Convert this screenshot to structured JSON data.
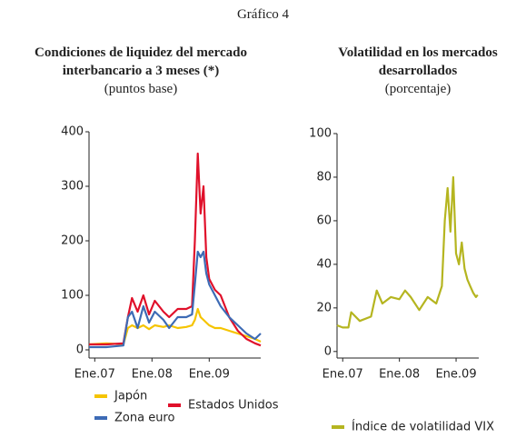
{
  "title": "Gráfico 4",
  "chart_data": [
    {
      "type": "line",
      "title": "Condiciones de liquidez del mercado interbancario a 3 meses (*)",
      "subtitle": "(puntos base)",
      "x": [
        2006.9,
        2007.2,
        2007.5,
        2007.58,
        2007.65,
        2007.75,
        2007.85,
        2007.95,
        2008.05,
        2008.2,
        2008.3,
        2008.45,
        2008.6,
        2008.7,
        2008.75,
        2008.8,
        2008.85,
        2008.9,
        2008.95,
        2009.0,
        2009.1,
        2009.2,
        2009.35,
        2009.5,
        2009.65,
        2009.8,
        2009.9
      ],
      "series": [
        {
          "name": "Japón",
          "color": "#f5c400",
          "values": [
            10,
            12,
            10,
            40,
            45,
            40,
            45,
            38,
            45,
            42,
            45,
            40,
            42,
            45,
            55,
            75,
            60,
            55,
            50,
            45,
            40,
            40,
            35,
            30,
            25,
            20,
            15
          ]
        },
        {
          "name": "Estados Unidos",
          "color": "#e0102a",
          "values": [
            10,
            10,
            12,
            60,
            95,
            70,
            100,
            65,
            90,
            70,
            60,
            75,
            75,
            80,
            200,
            360,
            250,
            300,
            170,
            130,
            110,
            100,
            60,
            35,
            20,
            12,
            8
          ]
        },
        {
          "name": "Zona euro",
          "color": "#3d6bb5",
          "values": [
            5,
            5,
            8,
            60,
            70,
            40,
            80,
            50,
            70,
            55,
            40,
            60,
            60,
            65,
            120,
            180,
            170,
            180,
            140,
            120,
            100,
            80,
            60,
            45,
            30,
            20,
            30
          ]
        }
      ],
      "xlim": [
        2006.9,
        2009.9
      ],
      "xticks": [
        {
          "value": 2007,
          "label": "Ene.07"
        },
        {
          "value": 2008,
          "label": "Ene.08"
        },
        {
          "value": 2009,
          "label": "Ene.09"
        }
      ],
      "ylim": [
        -15,
        400
      ],
      "yticks": [
        0,
        100,
        200,
        300,
        400
      ],
      "grid": false
    },
    {
      "type": "line",
      "title": "Volatilidad en los mercados desarrollados",
      "subtitle": "(porcentaje)",
      "x": [
        2006.9,
        2007.0,
        2007.1,
        2007.15,
        2007.3,
        2007.5,
        2007.6,
        2007.7,
        2007.85,
        2008.0,
        2008.1,
        2008.2,
        2008.35,
        2008.5,
        2008.65,
        2008.75,
        2008.8,
        2008.85,
        2008.9,
        2008.95,
        2009.0,
        2009.05,
        2009.1,
        2009.15,
        2009.2,
        2009.25,
        2009.3,
        2009.35,
        2009.38
      ],
      "series": [
        {
          "name": "Índice de volatilidad VIX",
          "color": "#b5b520",
          "values": [
            12,
            11,
            11,
            18,
            14,
            16,
            28,
            22,
            25,
            24,
            28,
            25,
            19,
            25,
            22,
            30,
            60,
            75,
            55,
            80,
            45,
            40,
            50,
            38,
            33,
            30,
            27,
            25,
            26
          ]
        }
      ],
      "xlim": [
        2006.9,
        2009.4
      ],
      "xticks": [
        {
          "value": 2007,
          "label": "Ene.07"
        },
        {
          "value": 2008,
          "label": "Ene.08"
        },
        {
          "value": 2009,
          "label": "Ene.09"
        }
      ],
      "ylim": [
        -3,
        100
      ],
      "yticks": [
        0,
        20,
        40,
        60,
        80,
        100
      ],
      "grid": false
    }
  ]
}
